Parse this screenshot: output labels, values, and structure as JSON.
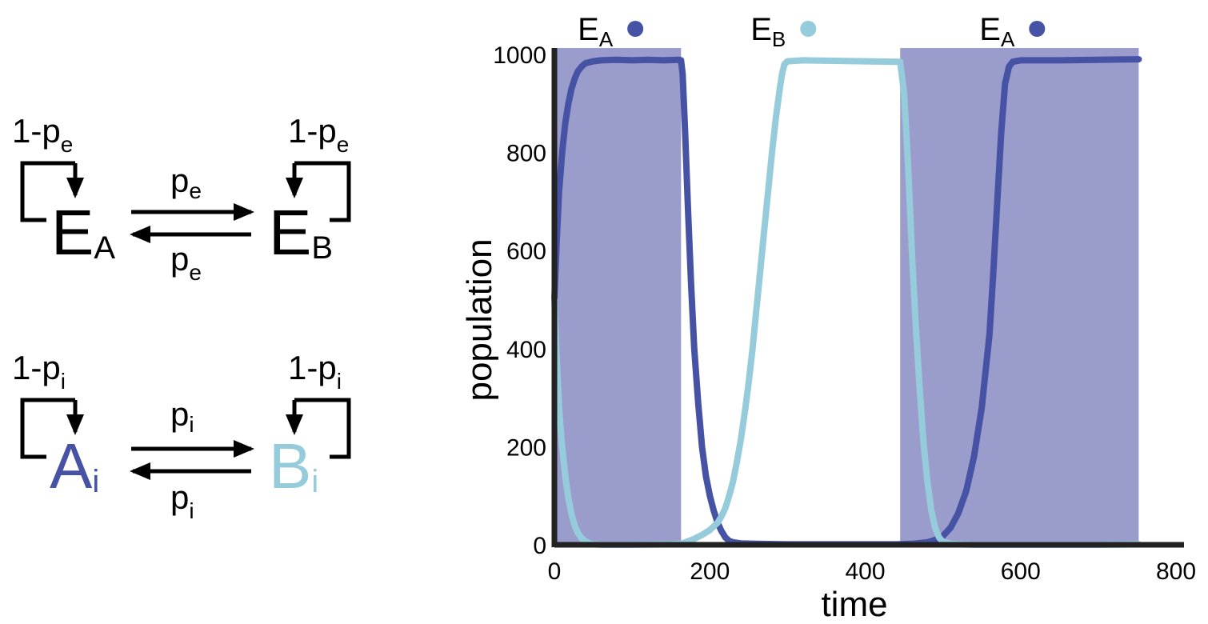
{
  "colors": {
    "env_a": "#4652a4",
    "env_b": "#95cbda",
    "shade": "#9a9ccb",
    "ink": "#000000",
    "axis": "#222222"
  },
  "diagram": {
    "env": {
      "left_main": "E",
      "left_sub": "A",
      "right_main": "E",
      "right_sub": "B",
      "loop_left": {
        "main": "1-p",
        "sub": "e"
      },
      "loop_right": {
        "main": "1-p",
        "sub": "e"
      },
      "top_rate": {
        "main": "p",
        "sub": "e"
      },
      "bottom_rate": {
        "main": "p",
        "sub": "e"
      }
    },
    "ind": {
      "left_main": "A",
      "left_sub": "i",
      "right_main": "B",
      "right_sub": "i",
      "loop_left": {
        "main": "1-p",
        "sub": "i"
      },
      "loop_right": {
        "main": "1-p",
        "sub": "i"
      },
      "top_rate": {
        "main": "p",
        "sub": "i"
      },
      "bottom_rate": {
        "main": "p",
        "sub": "i"
      }
    }
  },
  "chart_data": {
    "type": "line",
    "xlabel": "time",
    "ylabel": "population",
    "xlim": [
      0,
      800
    ],
    "ylim": [
      0,
      1000
    ],
    "xticks": [
      "0",
      "200",
      "400",
      "600",
      "800"
    ],
    "yticks": [
      "0",
      "200",
      "400",
      "600",
      "800",
      "1000"
    ],
    "grid": false,
    "environment_periods": [
      {
        "label_main": "E",
        "label_sub": "A",
        "color_key": "env_a",
        "start": 0,
        "end": 163,
        "shaded": true
      },
      {
        "label_main": "E",
        "label_sub": "B",
        "color_key": "env_b",
        "start": 163,
        "end": 445,
        "shaded": false
      },
      {
        "label_main": "E",
        "label_sub": "A",
        "color_key": "env_a",
        "start": 445,
        "end": 752,
        "shaded": true
      }
    ],
    "series": [
      {
        "color_key": "env_a",
        "x": [
          0,
          3,
          6,
          10,
          14,
          18,
          22,
          26,
          30,
          35,
          40,
          50,
          60,
          80,
          100,
          120,
          140,
          160,
          163,
          165,
          168,
          172,
          176,
          180,
          185,
          190,
          195,
          200,
          205,
          210,
          215,
          220,
          225,
          230,
          240,
          260,
          300,
          350,
          400,
          440,
          460,
          480,
          490,
          500,
          510,
          520,
          530,
          540,
          550,
          560,
          565,
          570,
          575,
          580,
          585,
          590,
          600,
          650,
          700,
          752
        ],
        "y": [
          500,
          620,
          720,
          800,
          860,
          900,
          930,
          950,
          965,
          975,
          982,
          986,
          988,
          989,
          988,
          989,
          988,
          989,
          988,
          960,
          850,
          680,
          530,
          400,
          290,
          200,
          140,
          100,
          70,
          45,
          28,
          15,
          8,
          5,
          3,
          2,
          1,
          1,
          1,
          1,
          2,
          5,
          10,
          18,
          35,
          65,
          110,
          180,
          280,
          430,
          560,
          700,
          840,
          940,
          975,
          985,
          988,
          988,
          989,
          990
        ]
      },
      {
        "color_key": "env_b",
        "x": [
          0,
          3,
          6,
          10,
          14,
          18,
          22,
          26,
          30,
          35,
          40,
          45,
          50,
          60,
          100,
          150,
          163,
          170,
          180,
          190,
          200,
          210,
          215,
          220,
          225,
          230,
          235,
          240,
          245,
          250,
          255,
          260,
          265,
          270,
          275,
          280,
          285,
          290,
          293,
          296,
          300,
          320,
          360,
          400,
          440,
          445,
          450,
          455,
          460,
          465,
          470,
          475,
          480,
          485,
          490,
          495,
          500,
          510,
          520,
          540,
          600,
          700,
          752
        ],
        "y": [
          500,
          380,
          280,
          200,
          140,
          95,
          62,
          40,
          25,
          13,
          7,
          3,
          1,
          0,
          0,
          1,
          2,
          6,
          12,
          20,
          30,
          45,
          58,
          75,
          100,
          130,
          170,
          215,
          270,
          330,
          400,
          480,
          560,
          640,
          720,
          800,
          870,
          930,
          960,
          980,
          986,
          988,
          987,
          986,
          985,
          985,
          920,
          780,
          600,
          450,
          320,
          210,
          130,
          70,
          35,
          15,
          6,
          2,
          1,
          0,
          0,
          0,
          1
        ]
      }
    ]
  }
}
